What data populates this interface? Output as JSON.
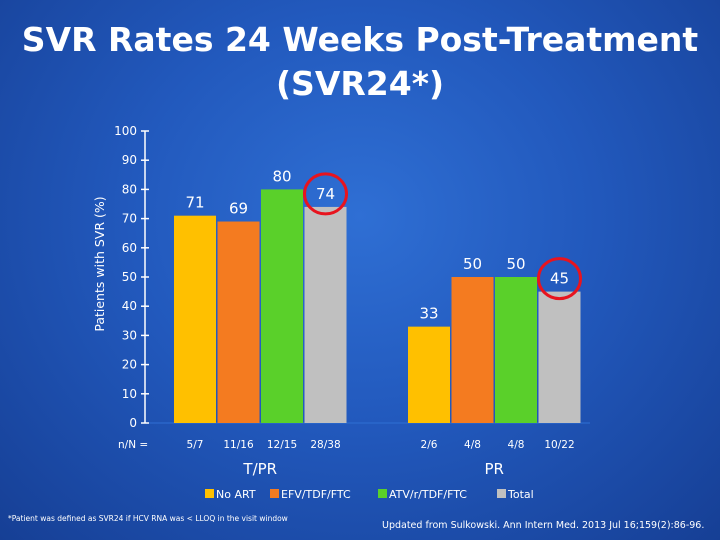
{
  "title": {
    "line1": "SVR Rates 24 Weeks Post-Treatment",
    "line2": "(SVR24*)"
  },
  "chart_data": {
    "type": "bar",
    "ylabel": "Patients with SVR (%)",
    "ylim": [
      0,
      100
    ],
    "yticks": [
      0,
      10,
      20,
      30,
      40,
      50,
      60,
      70,
      80,
      90,
      100
    ],
    "n_label": "n/N =",
    "series": [
      {
        "name": "No ART",
        "color": "#ffc000"
      },
      {
        "name": "EFV/TDF/FTC",
        "color": "#f47b20"
      },
      {
        "name": "ATV/r/TDF/FTC",
        "color": "#5ad02a"
      },
      {
        "name": "Total",
        "color": "#c0c0c0"
      }
    ],
    "groups": [
      {
        "name": "T/PR",
        "bars": [
          {
            "series": "No ART",
            "value": 71,
            "label": "71",
            "n": "5/7",
            "highlight": false
          },
          {
            "series": "EFV/TDF/FTC",
            "value": 69,
            "label": "69",
            "n": "11/16",
            "highlight": false
          },
          {
            "series": "ATV/r/TDF/FTC",
            "value": 80,
            "label": "80",
            "n": "12/15",
            "highlight": false
          },
          {
            "series": "Total",
            "value": 74,
            "label": "74",
            "n": "28/38",
            "highlight": true
          }
        ]
      },
      {
        "name": "PR",
        "bars": [
          {
            "series": "No ART",
            "value": 33,
            "label": "33",
            "n": "2/6",
            "highlight": false
          },
          {
            "series": "EFV/TDF/FTC",
            "value": 50,
            "label": "50",
            "n": "4/8",
            "highlight": false
          },
          {
            "series": "ATV/r/TDF/FTC",
            "value": 50,
            "label": "50",
            "n": "4/8",
            "highlight": false
          },
          {
            "series": "Total",
            "value": 45,
            "label": "45",
            "n": "10/22",
            "highlight": true
          }
        ]
      }
    ],
    "highlight_color": "#e8141e",
    "label_color": "#ffffff"
  },
  "footnote": "*Patient was defined as SVR24 if HCV RNA was < LLOQ in the visit window",
  "citation": "Updated from Sulkowski. Ann Intern Med. 2013 Jul 16;159(2):86-96."
}
